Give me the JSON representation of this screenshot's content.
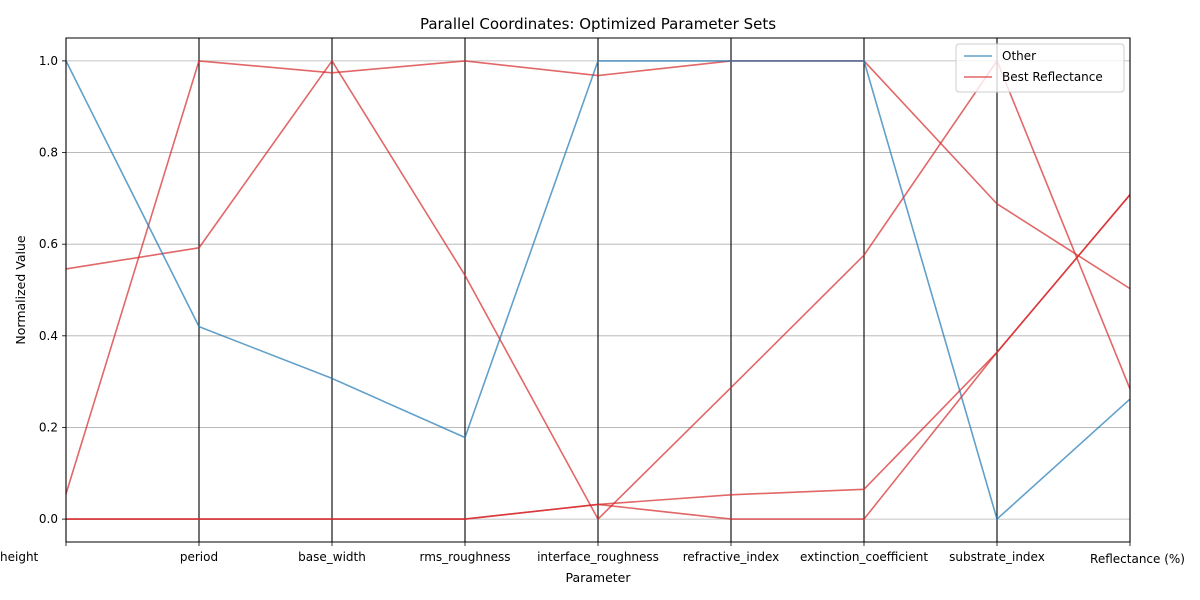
{
  "chart_data": {
    "type": "line",
    "subtype": "parallel-coordinates",
    "title": "Parallel Coordinates: Optimized Parameter Sets",
    "xlabel": "Parameter",
    "ylabel": "Normalized Value",
    "ylim": [
      -0.05,
      1.05
    ],
    "yticks": [
      0.0,
      0.2,
      0.4,
      0.6,
      0.8,
      1.0
    ],
    "ytick_labels": [
      "0.0",
      "0.2",
      "0.4",
      "0.6",
      "0.8",
      "1.0"
    ],
    "grid": true,
    "legend_position": "top-right",
    "categories": [
      "height",
      "period",
      "base_width",
      "rms_roughness",
      "interface_roughness",
      "refractive_index",
      "extinction_coefficient",
      "substrate_index",
      "Reflectance (%)"
    ],
    "legend": [
      {
        "name": "Other",
        "color": "#1f77b4"
      },
      {
        "name": "Best Reflectance",
        "color": "#d62728"
      }
    ],
    "series": [
      {
        "group": "Other",
        "color": "#1f77b4",
        "values": [
          1.0,
          0.42,
          0.307,
          0.178,
          1.0,
          1.0,
          1.0,
          0.0,
          0.262
        ]
      },
      {
        "group": "Best Reflectance",
        "color": "#d62728",
        "values": [
          0.546,
          0.592,
          1.0,
          0.532,
          0.0,
          0.287,
          0.576,
          1.0,
          0.284
        ]
      },
      {
        "group": "Best Reflectance",
        "color": "#d62728",
        "values": [
          0.055,
          1.0,
          0.974,
          1.0,
          0.968,
          1.0,
          1.0,
          0.688,
          0.503
        ]
      },
      {
        "group": "Best Reflectance",
        "color": "#d62728",
        "values": [
          0.0,
          0.0,
          0.0,
          0.0,
          0.032,
          0.0,
          0.0,
          0.364,
          0.708
        ]
      },
      {
        "group": "Best Reflectance",
        "color": "#d62728",
        "values": [
          0.0,
          0.0,
          0.0,
          0.0,
          0.032,
          0.053,
          0.065,
          0.364,
          0.708
        ]
      }
    ]
  }
}
